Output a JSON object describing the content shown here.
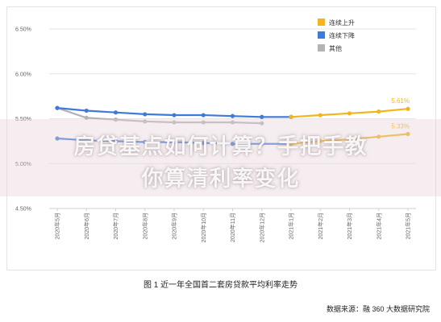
{
  "chart_data": {
    "type": "line",
    "title": "",
    "xlabel": "",
    "ylabel": "",
    "categories": [
      "2020年5月",
      "2020年6月",
      "2020年7月",
      "2020年8月",
      "2020年9月",
      "2020年10月",
      "2020年11月",
      "2020年12月",
      "2021年1月",
      "2021年2月",
      "2021年3月",
      "2021年4月",
      "2021年5月"
    ],
    "y_ticks": [
      "6.50%",
      "6.00%",
      "5.50%",
      "5.00%",
      "4.50%"
    ],
    "ylim": [
      4.5,
      6.5
    ],
    "grid": "horizontal",
    "legend_position": "top-right",
    "series": [
      {
        "name": "其他",
        "color": "#b3b3b3",
        "values": [
          5.62,
          5.51,
          5.49,
          5.47,
          5.46,
          5.46,
          5.46,
          5.45,
          null,
          null,
          null,
          null,
          null
        ]
      },
      {
        "name": "连续下降",
        "color": "#3f7ad8",
        "values": [
          5.62,
          5.59,
          5.57,
          5.55,
          5.54,
          5.54,
          5.53,
          5.52,
          5.52,
          null,
          null,
          null,
          null
        ],
        "values_lower": [
          5.28,
          5.26,
          5.25,
          5.24,
          5.24,
          5.23,
          5.22,
          5.22,
          5.22,
          null,
          null,
          null,
          null
        ]
      },
      {
        "name": "连续上升",
        "color": "#f2b51f",
        "values": [
          null,
          null,
          null,
          null,
          null,
          null,
          null,
          null,
          5.52,
          5.54,
          5.56,
          5.58,
          5.61
        ],
        "values_lower": [
          null,
          null,
          null,
          null,
          null,
          null,
          null,
          null,
          5.22,
          5.25,
          5.27,
          5.3,
          5.33
        ]
      }
    ],
    "annotations": [
      {
        "text": "5.61%",
        "color": "#f2b51f"
      },
      {
        "text": "5.33%",
        "color": "#f2b51f"
      }
    ]
  },
  "caption": "图 1 近一年全国首二套房贷款平均利率走势",
  "source": "数据来源：融 360 大数据研究院",
  "banner": {
    "line1": "房贷基点如何计算？手把手教",
    "line2": "你算清利率变化"
  }
}
